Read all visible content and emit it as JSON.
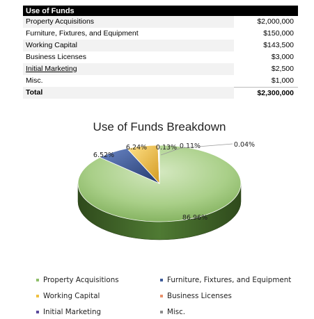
{
  "table": {
    "header": "Use of Funds",
    "rows": [
      {
        "label": "Property Acquisitions",
        "value": "$2,000,000"
      },
      {
        "label": "Furniture, Fixtures, and Equipment",
        "value": "$150,000"
      },
      {
        "label": "Working Capital",
        "value": "$143,500"
      },
      {
        "label": "Business Licenses",
        "value": "$3,000"
      },
      {
        "label": "Initial Marketing",
        "value": "$2,500"
      },
      {
        "label": "Misc.",
        "value": "$1,000"
      }
    ],
    "total": {
      "label": "Total",
      "value": "$2,300,000"
    }
  },
  "chart_data": {
    "type": "pie",
    "title": "Use of Funds Breakdown",
    "categories": [
      "Property Acquisitions",
      "Furniture, Fixtures, and Equipment",
      "Working Capital",
      "Business Licenses",
      "Initial Marketing",
      "Misc."
    ],
    "values": [
      2000000,
      150000,
      143500,
      3000,
      2500,
      1000
    ],
    "percent_labels": [
      "86.96%",
      "6.52%",
      "6.24%",
      "0.13%",
      "0.11%",
      "0.04%"
    ],
    "colors": [
      "#8fbf6a",
      "#3d5a99",
      "#f0c040",
      "#e8906a",
      "#5a4a9c",
      "#8c8c8c"
    ],
    "legend_position": "bottom",
    "three_d": true
  }
}
